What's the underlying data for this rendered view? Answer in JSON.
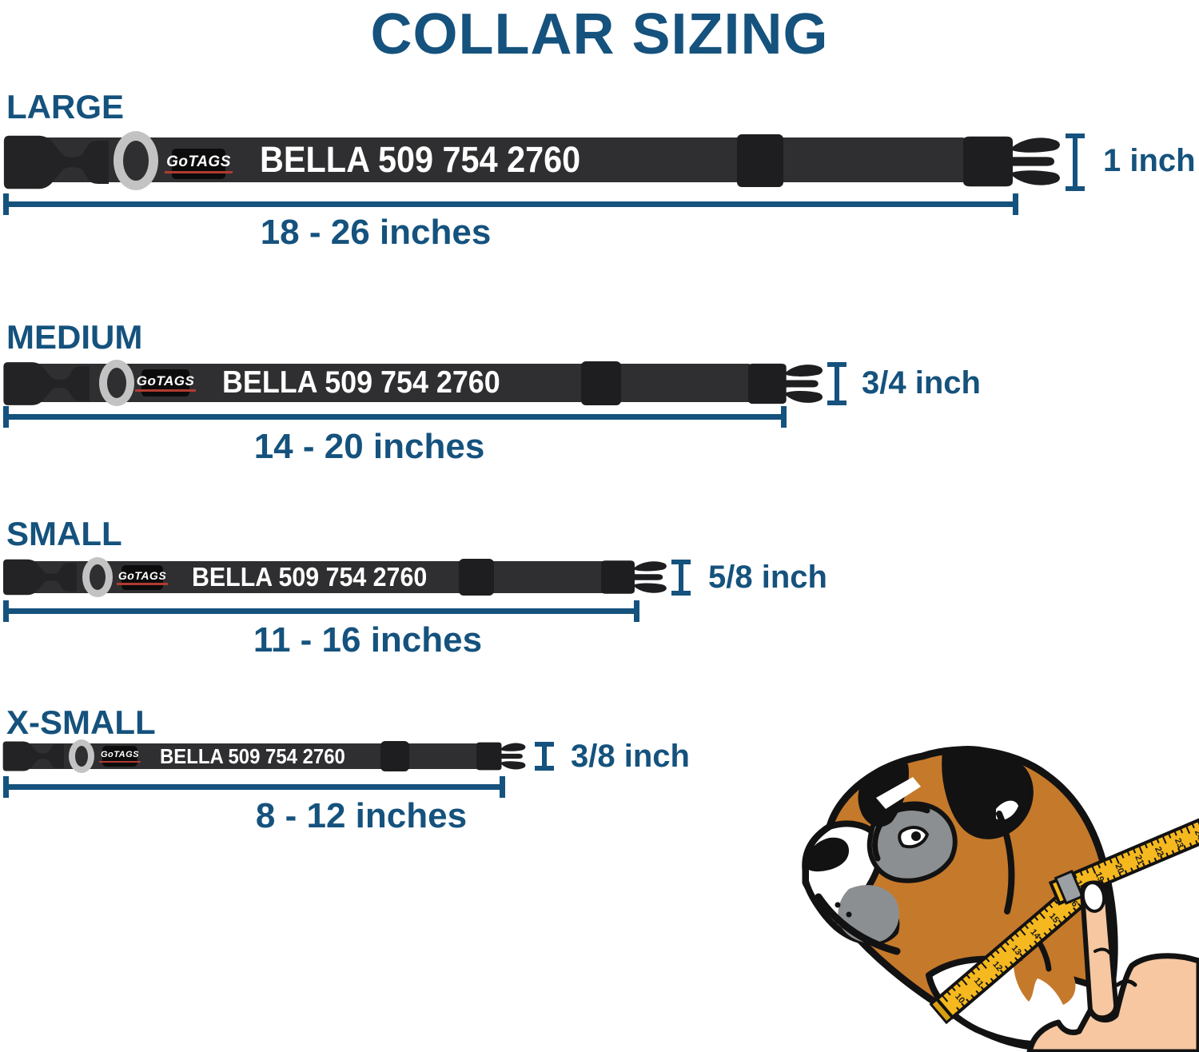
{
  "header": {
    "title": "COLLAR SIZING"
  },
  "brand": {
    "logo_text": "GoTAGS"
  },
  "personalization": {
    "text": "BELLA 509 754 2760"
  },
  "sizes": [
    {
      "label": "LARGE",
      "range": "18 - 26 inches",
      "width_label": "1 inch"
    },
    {
      "label": "MEDIUM",
      "range": "14 - 20 inches",
      "width_label": "3/4 inch"
    },
    {
      "label": "SMALL",
      "range": "11 - 16 inches",
      "width_label": "5/8 inch"
    },
    {
      "label": "X-SMALL",
      "range": "8 - 12 inches",
      "width_label": "3/8 inch"
    }
  ],
  "illustration": {
    "name": "boxer-dog-head-with-measuring-tape-held-by-hand",
    "tape_lower_numbers": [
      "10",
      "11",
      "12",
      "13",
      "14",
      "15",
      "16"
    ],
    "tape_upper_numbers": [
      "18",
      "19",
      "20",
      "21",
      "22",
      "23",
      "24"
    ]
  },
  "colors": {
    "accent_blue": "#15527D",
    "collar_strap": "#2F2F31",
    "collar_hardware": "#1E1E20",
    "logo_patch_black": "#0C0C0D",
    "logo_underline_red": "#B23A30",
    "d_ring_gray": "#C3C3C3",
    "collar_text": "#FFFFFF",
    "tape_yellow": "#F5B81F",
    "dog_brown": "#C5792B",
    "dog_gray": "#8C8F91",
    "hand_skin": "#F6C7A0"
  }
}
